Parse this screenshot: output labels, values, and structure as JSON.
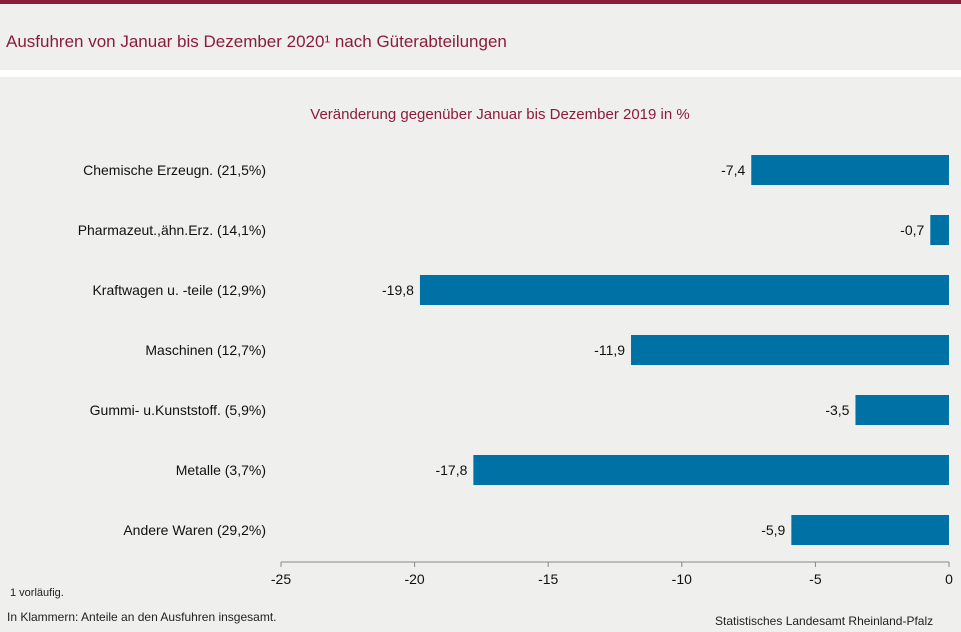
{
  "header": {
    "title": "Ausfuhren von Januar bis Dezember 2020¹ nach Güterabteilungen"
  },
  "chart_data": {
    "type": "bar",
    "orientation": "horizontal",
    "subtitle": "Veränderung gegenüber Januar bis Dezember 2019 in %",
    "categories": [
      "Chemische Erzeugn. (21,5%)",
      "Pharmazeut.,ähn.Erz. (14,1%)",
      "Kraftwagen u. -teile (12,9%)",
      "Maschinen (12,7%)",
      "Gummi- u.Kunststoff. (5,9%)",
      "Metalle (3,7%)",
      "Andere Waren (29,2%)"
    ],
    "values": [
      -7.4,
      -0.7,
      -19.8,
      -11.9,
      -3.5,
      -17.8,
      -5.9
    ],
    "value_labels": [
      "-7,4",
      "-0,7",
      "-19,8",
      "-11,9",
      "-3,5",
      "-17,8",
      "-5,9"
    ],
    "xlim": [
      -25,
      0
    ],
    "xticks": [
      -25,
      -20,
      -15,
      -10,
      -5,
      0
    ],
    "xtick_labels": [
      "-25",
      "-20",
      "-15",
      "-10",
      "-5",
      "0"
    ],
    "bar_color": "#0071a4",
    "grid": false
  },
  "footer": {
    "footnote": "1 vorläufig.",
    "note": "In Klammern: Anteile an den Ausfuhren insgesamt.",
    "source": "Statistisches Landesamt Rheinland-Pfalz"
  }
}
